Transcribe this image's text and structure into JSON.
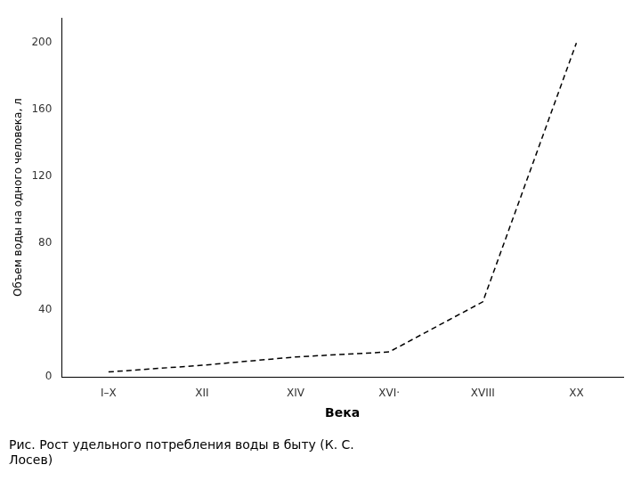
{
  "chart_data": {
    "type": "line",
    "categories": [
      "I–X",
      "XII",
      "XIV",
      "XVI·",
      "XVIII",
      "XX"
    ],
    "values": [
      3,
      7,
      12,
      15,
      45,
      200
    ],
    "color": "#000000",
    "line_style": "dashed",
    "marker": "none",
    "xlabel": "Века",
    "ylabel": "Объем воды на одного человека, л",
    "ylim": [
      0,
      215
    ],
    "yticks": [
      0,
      40,
      80,
      120,
      160,
      200
    ],
    "grid": false,
    "annotations": [
      "Рис. Рост удельного потребления воды в быту (К. С.\nЛосев)"
    ]
  }
}
